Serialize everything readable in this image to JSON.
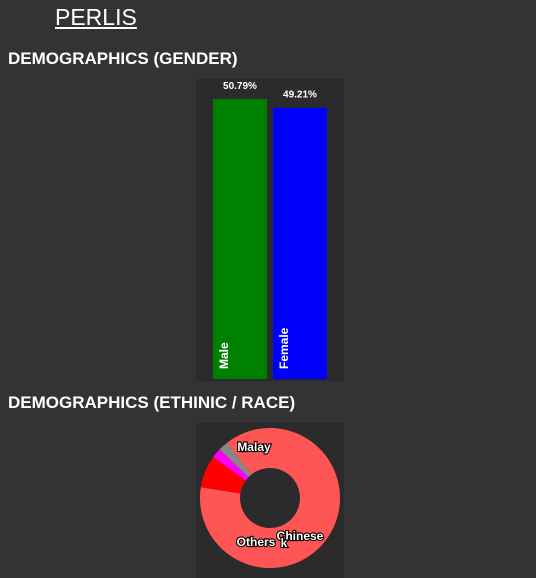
{
  "state": "PERLIS",
  "sections": {
    "gender": "DEMOGRAPHICS (GENDER)",
    "race": "DEMOGRAPHICS (ETHINIC / RACE)"
  },
  "chart_data": [
    {
      "type": "bar",
      "categories": [
        "Male",
        "Female"
      ],
      "values": [
        50.79,
        49.21
      ],
      "value_labels": [
        "50.79%",
        "49.21%"
      ],
      "colors": [
        "#008000",
        "#0000ff"
      ],
      "ylim": [
        0,
        50.79
      ],
      "grid": false,
      "legend": "none"
    },
    {
      "type": "pie",
      "donut": true,
      "labels": [
        "Malay",
        "Chinese",
        "Others",
        "k"
      ],
      "values": [
        88,
        7.5,
        2.3,
        2.2
      ],
      "colors": [
        "#ff5555",
        "#ff0000",
        "#ff00ff",
        "#888888"
      ],
      "legend": "none"
    }
  ]
}
